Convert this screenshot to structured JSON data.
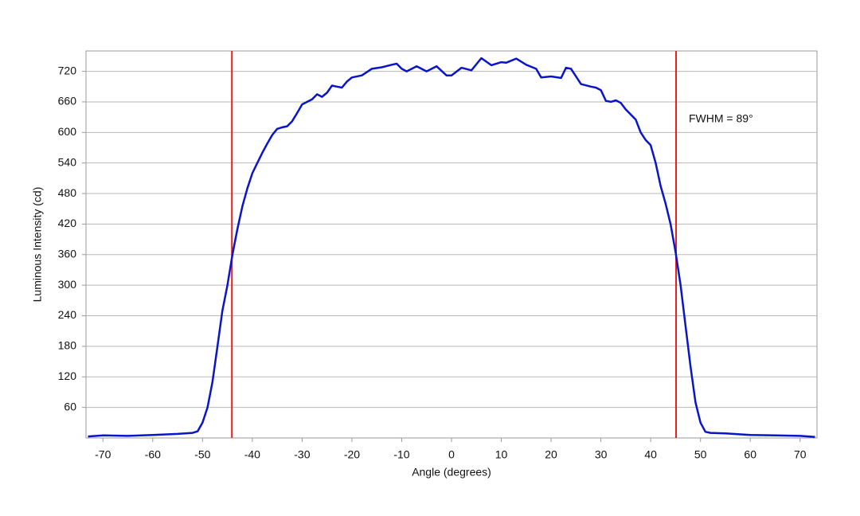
{
  "chart_data": {
    "type": "line",
    "xlabel": "Angle (degrees)",
    "ylabel": "Luminous Intensity (cd)",
    "annotation": "FWHM = 89°",
    "x": [
      -73,
      -70,
      -65,
      -60,
      -55,
      -52,
      -51,
      -50,
      -49,
      -48,
      -47,
      -46,
      -45,
      -44,
      -43,
      -42,
      -41,
      -40,
      -39,
      -38,
      -37,
      -36,
      -35,
      -34,
      -33,
      -32,
      -31,
      -30,
      -29,
      -28,
      -27,
      -26,
      -25,
      -24,
      -23,
      -22,
      -21,
      -20,
      -18,
      -16,
      -14,
      -12,
      -11,
      -10,
      -9,
      -7,
      -5,
      -3,
      -1,
      0,
      2,
      4,
      6,
      8,
      10,
      11,
      13,
      15,
      17,
      18,
      20,
      22,
      23,
      24,
      26,
      28,
      29,
      30,
      31,
      32,
      33,
      34,
      35,
      37,
      38,
      39,
      40,
      41,
      42,
      43,
      44,
      45,
      46,
      47,
      48,
      49,
      50,
      51,
      52,
      55,
      60,
      65,
      70,
      73
    ],
    "series": [
      {
        "name": "Luminous Intensity",
        "color": "#0a14c8",
        "values": [
          3,
          5,
          4,
          6,
          8,
          10,
          13,
          30,
          60,
          110,
          180,
          250,
          300,
          360,
          410,
          455,
          490,
          520,
          540,
          560,
          578,
          595,
          607,
          610,
          612,
          622,
          638,
          655,
          660,
          665,
          675,
          670,
          678,
          692,
          690,
          688,
          700,
          708,
          712,
          725,
          728,
          733,
          735,
          725,
          720,
          730,
          720,
          730,
          712,
          712,
          727,
          722,
          746,
          732,
          738,
          737,
          745,
          733,
          725,
          708,
          710,
          707,
          727,
          725,
          695,
          690,
          688,
          683,
          662,
          660,
          663,
          658,
          645,
          625,
          600,
          585,
          575,
          540,
          495,
          460,
          420,
          365,
          300,
          220,
          140,
          70,
          30,
          12,
          10,
          9,
          6,
          5,
          4,
          2
        ]
      }
    ],
    "vlines": [
      -44.1,
      45.1
    ],
    "vline_color": "#e02020",
    "xlim": [
      -73.4,
      73.4
    ],
    "ylim": [
      0,
      760
    ],
    "xticks": [
      -70,
      -60,
      -50,
      -40,
      -30,
      -20,
      -10,
      0,
      10,
      20,
      30,
      40,
      50,
      60,
      70
    ],
    "yticks": [
      60,
      120,
      180,
      240,
      300,
      360,
      420,
      480,
      540,
      600,
      660,
      720
    ],
    "grid": true
  }
}
